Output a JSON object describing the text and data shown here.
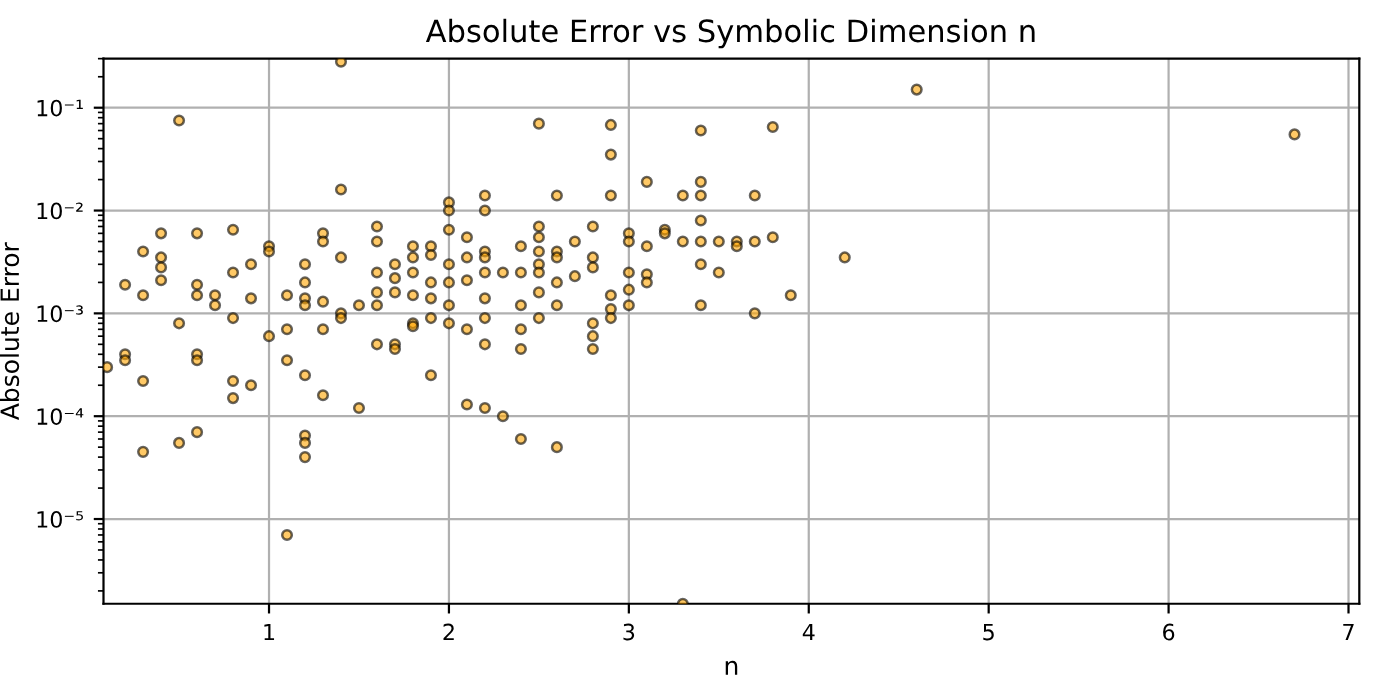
{
  "chart_data": {
    "type": "scatter",
    "title": "Absolute Error vs Symbolic Dimension n",
    "xlabel": "n",
    "ylabel": "Absolute Error",
    "log": "y",
    "grid": true,
    "marker": "circle",
    "xlim": [
      0.08,
      7.06
    ],
    "xticks": [
      1,
      2,
      3,
      4,
      5,
      6,
      7
    ],
    "ylim": [
      1.5e-06,
      0.3
    ],
    "yticks": [
      {
        "value": 1e-05,
        "label": "10⁻⁵"
      },
      {
        "value": 0.0001,
        "label": "10⁻⁴"
      },
      {
        "value": 0.001,
        "label": "10⁻³"
      },
      {
        "value": 0.01,
        "label": "10⁻²"
      },
      {
        "value": 0.1,
        "label": "10⁻¹"
      }
    ],
    "series": [
      {
        "color": "#ffa500",
        "x": [
          0.1,
          0.2,
          0.2,
          0.2,
          0.3,
          0.3,
          0.3,
          0.3,
          0.4,
          0.4,
          0.4,
          0.4,
          0.5,
          0.5,
          0.5,
          0.6,
          0.6,
          0.6,
          0.6,
          0.6,
          0.6,
          0.7,
          0.7,
          0.8,
          0.8,
          0.8,
          0.8,
          0.8,
          0.9,
          0.9,
          0.9,
          1.0,
          1.0,
          1.0,
          1.1,
          1.1,
          1.1,
          1.1,
          1.2,
          1.2,
          1.2,
          1.2,
          1.2,
          1.2,
          1.2,
          1.2,
          1.3,
          1.3,
          1.3,
          1.3,
          1.3,
          1.4,
          1.4,
          1.4,
          1.4,
          1.4,
          1.5,
          1.5,
          1.6,
          1.6,
          1.6,
          1.6,
          1.6,
          1.6,
          1.7,
          1.7,
          1.7,
          1.7,
          1.7,
          1.8,
          1.8,
          1.8,
          1.8,
          1.8,
          1.8,
          1.9,
          1.9,
          1.9,
          1.9,
          1.9,
          1.9,
          2.0,
          2.0,
          2.0,
          2.0,
          2.0,
          2.0,
          2.0,
          2.1,
          2.1,
          2.1,
          2.1,
          2.1,
          2.2,
          2.2,
          2.2,
          2.2,
          2.2,
          2.2,
          2.2,
          2.2,
          2.2,
          2.3,
          2.3,
          2.4,
          2.4,
          2.4,
          2.4,
          2.4,
          2.4,
          2.5,
          2.5,
          2.5,
          2.5,
          2.5,
          2.5,
          2.5,
          2.5,
          2.6,
          2.6,
          2.6,
          2.6,
          2.6,
          2.6,
          2.7,
          2.7,
          2.8,
          2.8,
          2.8,
          2.8,
          2.8,
          2.8,
          2.9,
          2.9,
          2.9,
          2.9,
          2.9,
          2.9,
          3.0,
          3.0,
          3.0,
          3.0,
          3.0,
          3.1,
          3.1,
          3.1,
          3.1,
          3.2,
          3.2,
          3.3,
          3.3,
          3.3,
          3.4,
          3.4,
          3.4,
          3.4,
          3.4,
          3.4,
          3.4,
          3.5,
          3.5,
          3.6,
          3.6,
          3.7,
          3.7,
          3.7,
          3.8,
          3.8,
          3.9,
          4.2,
          4.6,
          6.7
        ],
        "values": [
          0.0003,
          0.0019,
          0.0004,
          0.00035,
          0.004,
          0.0015,
          0.00022,
          4.5e-05,
          0.006,
          0.0035,
          0.0028,
          0.0021,
          0.075,
          0.0008,
          5.5e-05,
          0.006,
          0.0019,
          0.0015,
          0.0004,
          0.00035,
          7e-05,
          0.0015,
          0.0012,
          0.0065,
          0.0025,
          0.0009,
          0.00022,
          0.00015,
          0.003,
          0.0014,
          0.0002,
          0.0045,
          0.004,
          0.0006,
          0.0015,
          0.0007,
          0.00035,
          7e-06,
          0.003,
          0.002,
          0.0014,
          0.0012,
          0.00025,
          6.5e-05,
          5.5e-05,
          4e-05,
          0.006,
          0.005,
          0.0013,
          0.0007,
          0.00016,
          0.28,
          0.016,
          0.0035,
          0.001,
          0.0009,
          0.0012,
          0.00012,
          0.007,
          0.005,
          0.0025,
          0.0016,
          0.0012,
          0.0005,
          0.003,
          0.0022,
          0.0016,
          0.0005,
          0.00045,
          0.0045,
          0.0035,
          0.0025,
          0.0015,
          0.0008,
          0.00075,
          0.0045,
          0.0037,
          0.002,
          0.0014,
          0.0009,
          0.00025,
          0.012,
          0.01,
          0.0065,
          0.003,
          0.002,
          0.0012,
          0.0008,
          0.0055,
          0.0035,
          0.0021,
          0.0007,
          0.00013,
          0.014,
          0.01,
          0.004,
          0.0035,
          0.0025,
          0.0014,
          0.0009,
          0.0005,
          0.00012,
          0.0025,
          0.0001,
          0.0045,
          0.0025,
          0.0012,
          0.0007,
          0.00045,
          6e-05,
          0.07,
          0.007,
          0.0055,
          0.004,
          0.003,
          0.0025,
          0.0016,
          0.0009,
          0.014,
          0.004,
          0.0035,
          0.002,
          0.0012,
          5e-05,
          0.005,
          0.0023,
          0.007,
          0.0035,
          0.0028,
          0.0008,
          0.0006,
          0.00045,
          0.068,
          0.035,
          0.014,
          0.0015,
          0.0011,
          0.0009,
          0.006,
          0.005,
          0.0025,
          0.0017,
          0.0012,
          0.019,
          0.0045,
          0.0024,
          0.002,
          0.0065,
          0.006,
          0.014,
          0.005,
          1.5e-06,
          0.06,
          0.019,
          0.014,
          0.008,
          0.005,
          0.003,
          0.0012,
          0.005,
          0.0025,
          0.005,
          0.0045,
          0.014,
          0.005,
          0.001,
          0.065,
          0.0055,
          0.0015,
          0.0035,
          0.15,
          0.055
        ]
      }
    ]
  }
}
